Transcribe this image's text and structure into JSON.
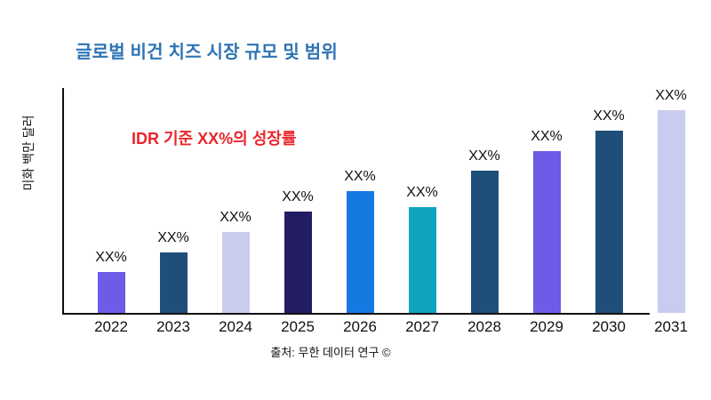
{
  "chart_data": {
    "type": "bar",
    "title": "글로벌 비건 치즈 시장 규모 및 범위",
    "title_color": "#2E74B5",
    "ylabel": "미화 백만 달러",
    "xlabel": "",
    "categories": [
      "2022",
      "2023",
      "2024",
      "2025",
      "2026",
      "2027",
      "2028",
      "2029",
      "2030",
      "2031"
    ],
    "values": [
      20,
      30,
      40,
      50,
      60,
      52,
      70,
      80,
      90,
      100
    ],
    "values_note": "numeric values not printed on chart — every bar is labeled 'XX%'; values are estimated relative bar heights as % of tallest bar",
    "bar_labels": [
      "XX%",
      "XX%",
      "XX%",
      "XX%",
      "XX%",
      "XX%",
      "XX%",
      "XX%",
      "XX%",
      "XX%"
    ],
    "bar_colors": [
      "#6C5CE7",
      "#1F4E79",
      "#C9CCEF",
      "#221C63",
      "#147AE2",
      "#10A3BE",
      "#1F4E79",
      "#6C5CE7",
      "#1F4E79",
      "#C9CCEF"
    ],
    "annotation": "IDR 기준 XX%의 성장률",
    "annotation_color": "#E9262C",
    "axis_color": "#111111",
    "grid": false,
    "legend": false,
    "ylim_note": "no numeric y-axis ticks shown",
    "source": "출처: 무한 데이터 연구 ©"
  }
}
